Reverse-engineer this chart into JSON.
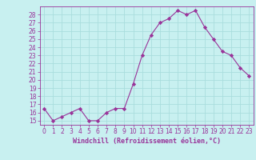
{
  "x": [
    0,
    1,
    2,
    3,
    4,
    5,
    6,
    7,
    8,
    9,
    10,
    11,
    12,
    13,
    14,
    15,
    16,
    17,
    18,
    19,
    20,
    21,
    22,
    23
  ],
  "y": [
    16.5,
    15.0,
    15.5,
    16.0,
    16.5,
    15.0,
    15.0,
    16.0,
    16.5,
    16.5,
    19.5,
    23.0,
    25.5,
    27.0,
    27.5,
    28.5,
    28.0,
    28.5,
    26.5,
    25.0,
    23.5,
    23.0,
    21.5,
    20.5
  ],
  "line_color": "#993399",
  "marker": "D",
  "marker_size": 2.2,
  "xlabel": "Windchill (Refroidissement éolien,°C)",
  "xlim": [
    -0.5,
    23.5
  ],
  "ylim": [
    14.5,
    29.0
  ],
  "yticks": [
    15,
    16,
    17,
    18,
    19,
    20,
    21,
    22,
    23,
    24,
    25,
    26,
    27,
    28
  ],
  "xticks": [
    0,
    1,
    2,
    3,
    4,
    5,
    6,
    7,
    8,
    9,
    10,
    11,
    12,
    13,
    14,
    15,
    16,
    17,
    18,
    19,
    20,
    21,
    22,
    23
  ],
  "background_color": "#c8f0f0",
  "grid_color": "#aadddd",
  "tick_label_color": "#993399",
  "axis_label_color": "#993399",
  "font_size": 5.5,
  "xlabel_font_size": 6.0
}
